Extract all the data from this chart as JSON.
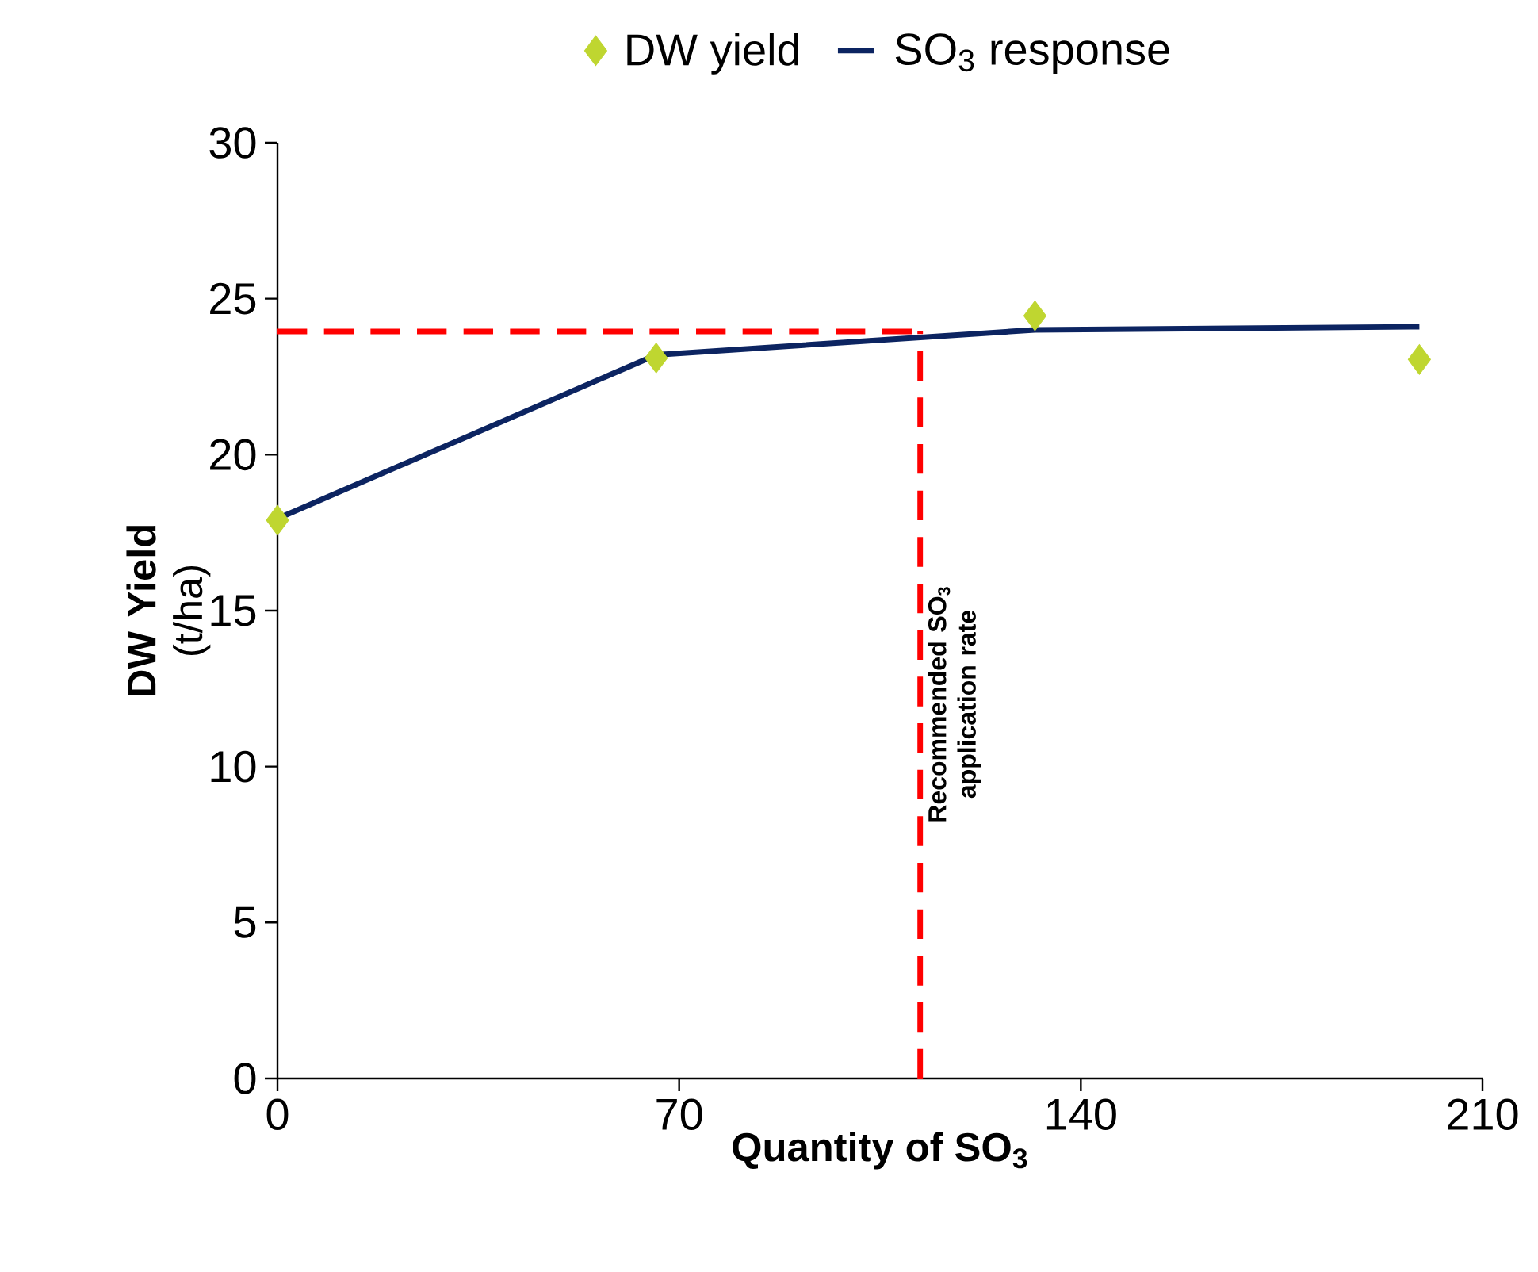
{
  "chart_data": {
    "type": "line",
    "xlabel": "Quantity of SO$_{3}$",
    "ylabel": "**DW Yield** (t/ha)",
    "xlim": [
      0,
      210
    ],
    "xticks": [
      0,
      70,
      140,
      210
    ],
    "ylim": [
      0,
      30
    ],
    "yticks": [
      0,
      5,
      10,
      15,
      20,
      25,
      30
    ],
    "grid": false,
    "legend": "top",
    "annotations": [
      {
        "text": "Recommended SO$_{3}$ application rate",
        "x": 112,
        "y": 12
      }
    ],
    "series": [
      {
        "name": "DW yield",
        "type": "scatter",
        "marker": "diamond",
        "color": "#bfd630",
        "x": [
          0,
          66,
          132,
          199
        ],
        "values": [
          17.9,
          23.1,
          24.45,
          23.05
        ]
      },
      {
        "name": "SO$_{3}$ response",
        "color": "#0c2461",
        "x": [
          0,
          66,
          132,
          199
        ],
        "values": [
          17.95,
          23.2,
          24.0,
          24.1
        ]
      },
      {
        "line_style": "dashed",
        "color": "#ff0000",
        "x": [
          0,
          112
        ],
        "values": [
          23.95,
          23.95
        ]
      },
      {
        "line_style": "dashed",
        "color": "#ff0000",
        "x": [
          112,
          112
        ],
        "values": [
          0,
          23.95
        ]
      }
    ]
  }
}
